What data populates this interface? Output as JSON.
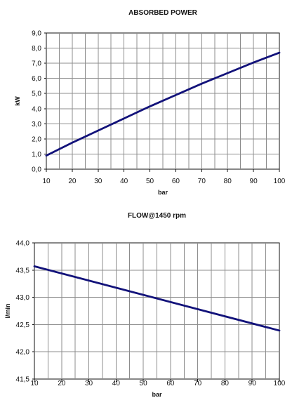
{
  "chart_data": [
    {
      "type": "line",
      "title": "ABSORBED POWER",
      "xlabel": "bar",
      "ylabel": "kW",
      "xlim": [
        10,
        100
      ],
      "ylim": [
        0.0,
        9.0
      ],
      "grid": true,
      "x_ticks": [
        10,
        20,
        30,
        40,
        50,
        60,
        70,
        80,
        90,
        100
      ],
      "x_tick_labels": [
        "10",
        "20",
        "30",
        "40",
        "50",
        "60",
        "70",
        "80",
        "90",
        "100"
      ],
      "y_ticks": [
        0.0,
        1.0,
        2.0,
        3.0,
        4.0,
        5.0,
        6.0,
        7.0,
        8.0,
        9.0
      ],
      "y_tick_labels": [
        "0,0",
        "1,0",
        "2,0",
        "3,0",
        "4,0",
        "5,0",
        "6,0",
        "7,0",
        "8,0",
        "9,0"
      ],
      "series": [
        {
          "color": "#12127a",
          "x": [
            10,
            20,
            30,
            40,
            50,
            60,
            70,
            80,
            90,
            100
          ],
          "y": [
            0.9,
            1.75,
            2.55,
            3.35,
            4.15,
            4.9,
            5.65,
            6.35,
            7.05,
            7.7
          ]
        }
      ]
    },
    {
      "type": "line",
      "title": "FLOW@1450 rpm",
      "xlabel": "bar",
      "ylabel": "l/min",
      "xlim": [
        10,
        100
      ],
      "ylim": [
        41.5,
        44.0
      ],
      "grid": true,
      "x_ticks": [
        10,
        20,
        30,
        40,
        50,
        60,
        70,
        80,
        90,
        100
      ],
      "x_tick_labels": [
        "10",
        "20",
        "30",
        "40",
        "50",
        "60",
        "70",
        "80",
        "90",
        "100"
      ],
      "y_ticks": [
        41.5,
        42.0,
        42.5,
        43.0,
        43.5,
        44.0
      ],
      "y_tick_labels": [
        "41,5",
        "42,0",
        "42,5",
        "43,0",
        "43,5",
        "44,0"
      ],
      "series": [
        {
          "color": "#12127a",
          "x": [
            10,
            100
          ],
          "y": [
            43.57,
            42.39
          ]
        }
      ]
    }
  ]
}
